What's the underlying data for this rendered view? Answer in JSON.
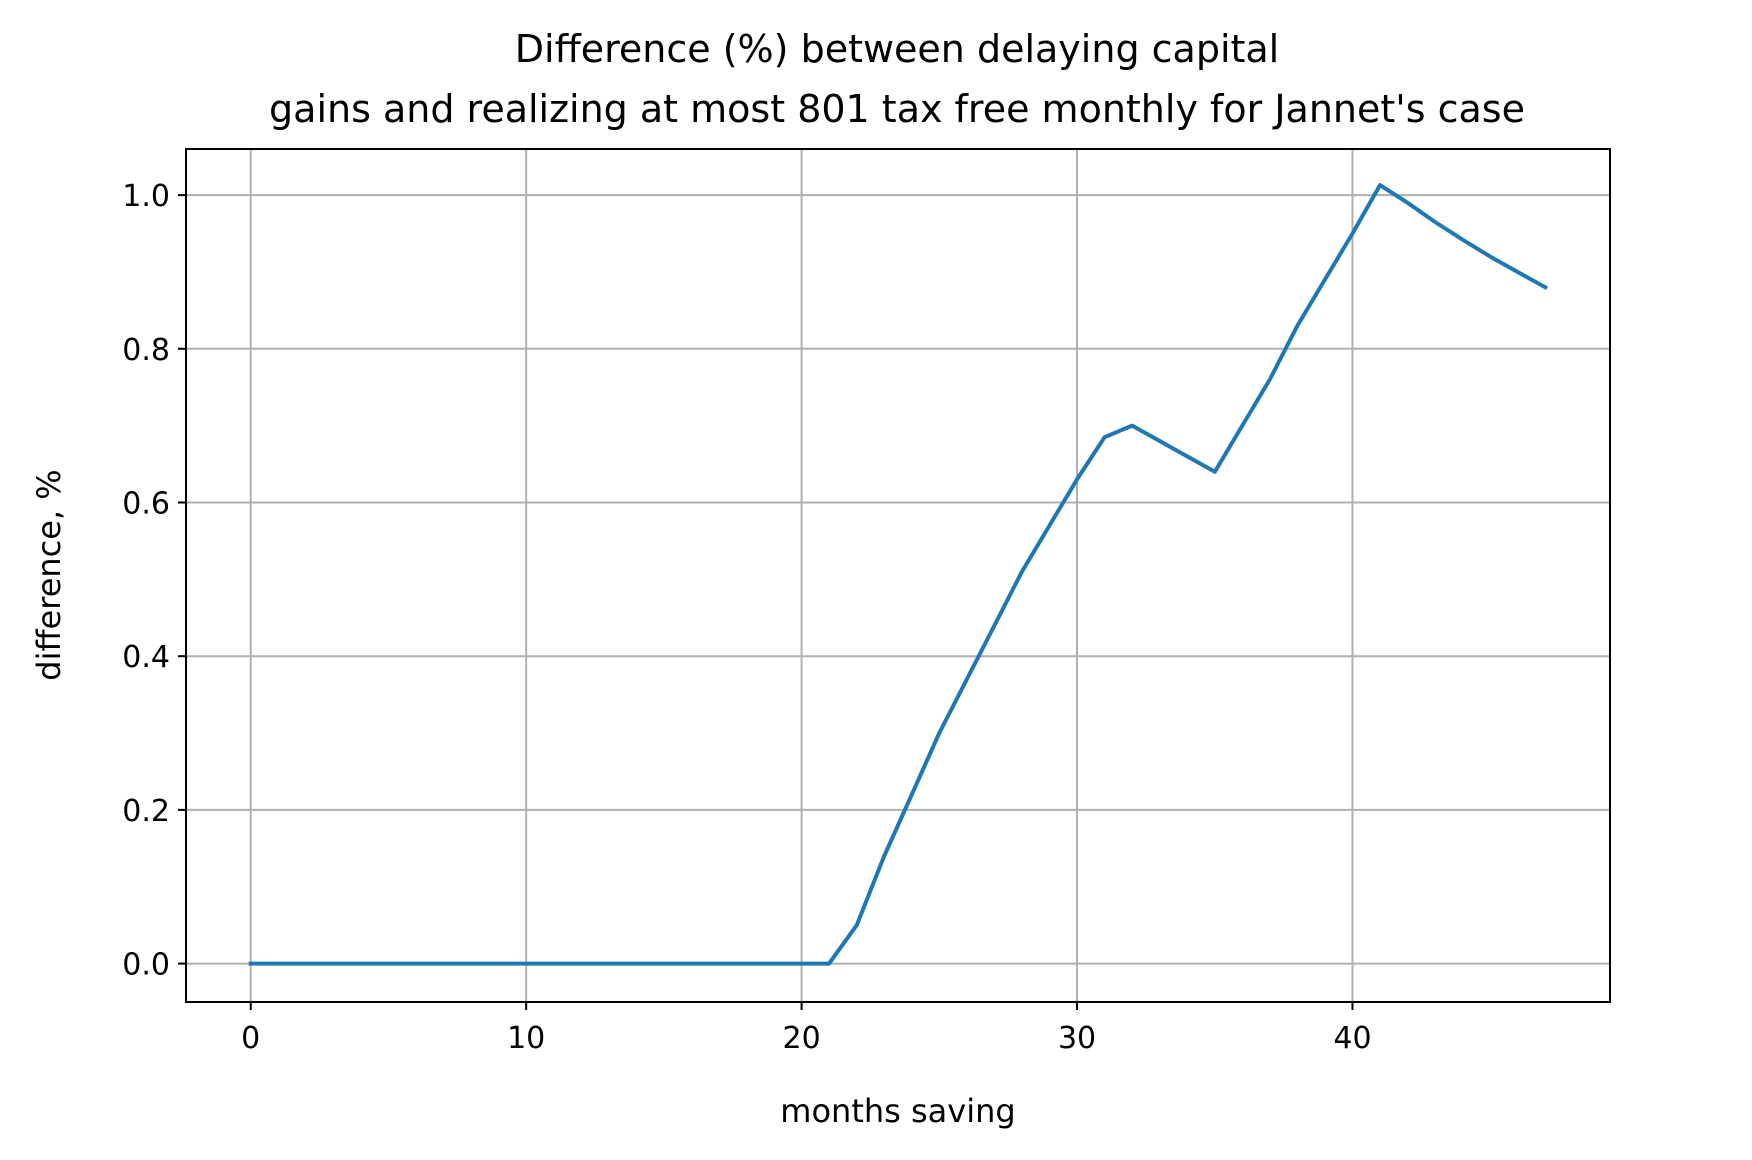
{
  "chart_data": {
    "type": "line",
    "title_lines": [
      "Difference (%) between delaying capital",
      "gains and realizing at most 801 tax free monthly for Jannet's case"
    ],
    "xlabel": "months saving",
    "ylabel": "difference, %",
    "xlim": [
      -2.35,
      49.35
    ],
    "ylim": [
      -0.05,
      1.06
    ],
    "xticks": [
      0,
      10,
      20,
      30,
      40
    ],
    "yticks": [
      0.0,
      0.2,
      0.4,
      0.6,
      0.8,
      1.0
    ],
    "xtick_labels": [
      "0",
      "10",
      "20",
      "30",
      "40"
    ],
    "ytick_labels": [
      "0.0",
      "0.2",
      "0.4",
      "0.6",
      "0.8",
      "1.0"
    ],
    "grid": true,
    "series": [
      {
        "color": "#1f77b4",
        "x": [
          0,
          1,
          2,
          3,
          4,
          5,
          6,
          7,
          8,
          9,
          10,
          11,
          12,
          13,
          14,
          15,
          16,
          17,
          18,
          19,
          20,
          21,
          22,
          23,
          24,
          25,
          26,
          27,
          28,
          29,
          30,
          31,
          32,
          33,
          34,
          35,
          36,
          37,
          38,
          39,
          40,
          41,
          42,
          43,
          44,
          45,
          46,
          47
        ],
        "y": [
          0,
          0,
          0,
          0,
          0,
          0,
          0,
          0,
          0,
          0,
          0,
          0,
          0,
          0,
          0,
          0,
          0,
          0,
          0,
          0,
          0,
          0,
          0.05,
          0.14,
          0.22,
          0.3,
          0.37,
          0.44,
          0.51,
          0.57,
          0.63,
          0.685,
          0.7,
          0.68,
          0.66,
          0.64,
          0.7,
          0.76,
          0.83,
          0.89,
          0.95,
          1.013,
          0.99,
          0.965,
          0.942,
          0.92,
          0.9,
          0.88
        ]
      }
    ]
  }
}
